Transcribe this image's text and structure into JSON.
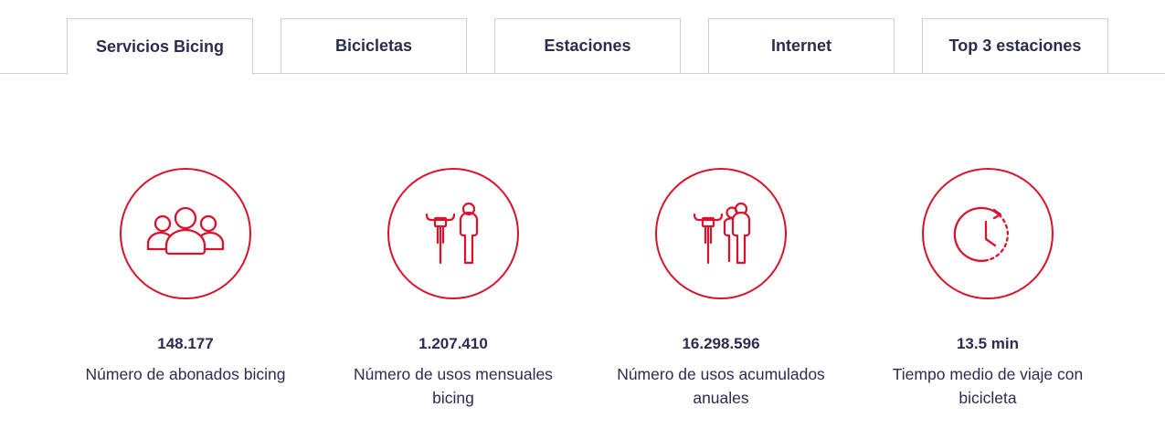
{
  "tabs": [
    {
      "label": "Servicios Bicing",
      "active": true
    },
    {
      "label": "Bicicletas",
      "active": false
    },
    {
      "label": "Estaciones",
      "active": false
    },
    {
      "label": "Internet",
      "active": false
    },
    {
      "label": "Top 3 estaciones",
      "active": false
    }
  ],
  "stats": [
    {
      "icon": "users-group-icon",
      "value": "148.177",
      "label_lines": [
        "Número de abonados bicing"
      ]
    },
    {
      "icon": "bike-person-icon",
      "value": "1.207.410",
      "label_lines": [
        "Número de usos mensuales",
        "bicing"
      ]
    },
    {
      "icon": "bike-people-icon",
      "value": "16.298.596",
      "label_lines": [
        "Número de usos acumulados",
        "anuales"
      ]
    },
    {
      "icon": "clock-icon",
      "value": "13.5 min",
      "label_lines": [
        "Tiempo medio de viaje con",
        "bicicleta"
      ]
    }
  ],
  "colors": {
    "accent": "#d8132b",
    "text": "#2b2d4f",
    "border": "#cfcfcf"
  }
}
